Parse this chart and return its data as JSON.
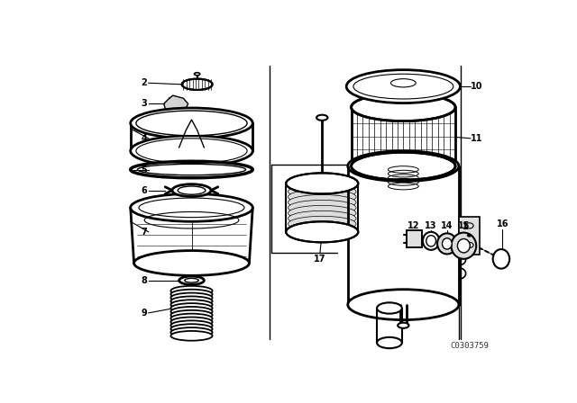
{
  "bg_color": "#ffffff",
  "line_color": "#000000",
  "fig_width": 6.4,
  "fig_height": 4.48,
  "dpi": 100,
  "watermark": "C0303759"
}
